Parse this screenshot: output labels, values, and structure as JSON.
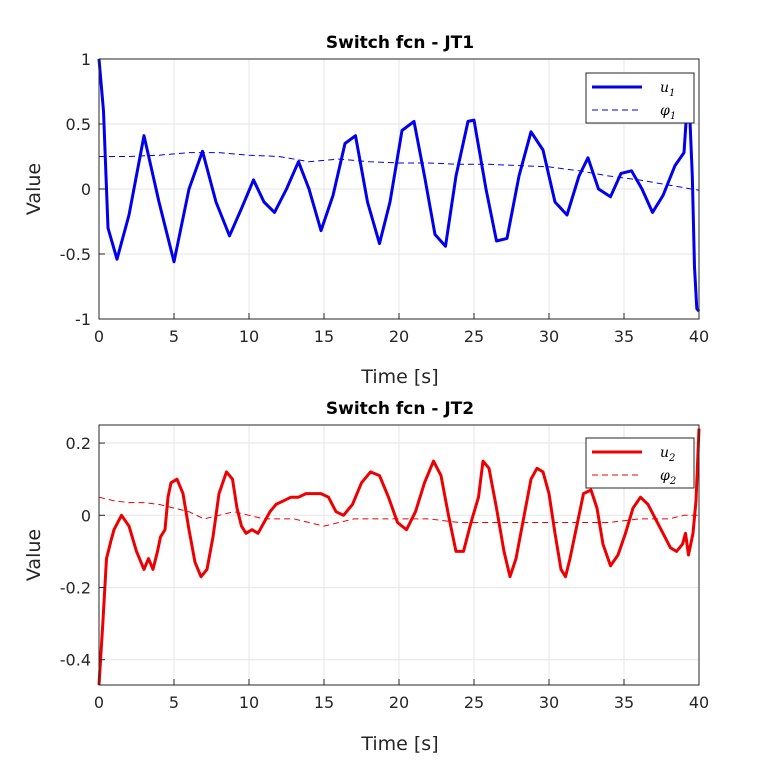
{
  "chart_data": [
    {
      "type": "line",
      "title": "Switch fcn - JT1",
      "xlabel": "Time [s]",
      "ylabel": "Value",
      "xlim": [
        0,
        40
      ],
      "ylim": [
        -1,
        1
      ],
      "xticks": [
        0,
        5,
        10,
        15,
        20,
        25,
        30,
        35,
        40
      ],
      "yticks": [
        -1,
        -0.5,
        0,
        0.5,
        1
      ],
      "xtick_labels": [
        "0",
        "5",
        "10",
        "15",
        "20",
        "25",
        "30",
        "35",
        "40"
      ],
      "ytick_labels": [
        "-1",
        "-0.5",
        "0",
        "0.5",
        "1"
      ],
      "grid": true,
      "legend_position": "top-right",
      "series": [
        {
          "name": "u1",
          "label_main": "u",
          "label_sub": "1",
          "color": "#0000ee",
          "style": "solid",
          "x": [
            0,
            0.3,
            0.6,
            1.2,
            2.0,
            3.0,
            4.0,
            5.0,
            6.0,
            6.9,
            7.8,
            8.7,
            9.5,
            10.3,
            11.0,
            11.7,
            12.5,
            13.3,
            14.0,
            14.8,
            15.6,
            16.4,
            17.1,
            17.9,
            18.7,
            19.4,
            20.2,
            21.0,
            21.7,
            22.4,
            23.1,
            23.8,
            24.6,
            25.0,
            25.8,
            26.5,
            27.2,
            28.0,
            28.8,
            29.6,
            30.4,
            31.2,
            32.0,
            32.6,
            33.3,
            34.1,
            34.8,
            35.5,
            36.2,
            36.9,
            37.6,
            38.4,
            39.0,
            39.3,
            39.55,
            39.7,
            39.85,
            40.0
          ],
          "y": [
            1.0,
            0.6,
            -0.3,
            -0.54,
            -0.2,
            0.41,
            -0.1,
            -0.56,
            0.0,
            0.29,
            -0.1,
            -0.36,
            -0.15,
            0.07,
            -0.1,
            -0.18,
            0.0,
            0.21,
            0.0,
            -0.32,
            -0.05,
            0.35,
            0.41,
            -0.1,
            -0.42,
            -0.1,
            0.45,
            0.52,
            0.1,
            -0.35,
            -0.44,
            0.1,
            0.52,
            0.53,
            0.0,
            -0.4,
            -0.38,
            0.1,
            0.44,
            0.3,
            -0.1,
            -0.2,
            0.1,
            0.24,
            0.0,
            -0.06,
            0.12,
            0.14,
            0.0,
            -0.18,
            -0.05,
            0.18,
            0.28,
            0.8,
            0.1,
            -0.6,
            -0.92,
            -0.94
          ]
        },
        {
          "name": "phi1",
          "label_main": "φ",
          "label_sub": "1",
          "color": "#0000ee",
          "style": "dashed",
          "x": [
            0,
            2,
            4,
            5,
            6,
            8,
            10,
            12,
            14,
            16,
            18,
            20,
            22,
            24,
            26,
            28,
            30,
            32,
            34,
            36,
            38,
            39,
            40
          ],
          "y": [
            0.25,
            0.25,
            0.26,
            0.27,
            0.28,
            0.28,
            0.26,
            0.25,
            0.21,
            0.23,
            0.21,
            0.2,
            0.2,
            0.19,
            0.19,
            0.18,
            0.17,
            0.14,
            0.1,
            0.07,
            0.03,
            0.01,
            -0.01
          ]
        }
      ]
    },
    {
      "type": "line",
      "title": "Switch fcn - JT2",
      "xlabel": "Time [s]",
      "ylabel": "Value",
      "xlim": [
        0,
        40
      ],
      "ylim": [
        -0.47,
        0.25
      ],
      "xticks": [
        0,
        5,
        10,
        15,
        20,
        25,
        30,
        35,
        40
      ],
      "yticks": [
        -0.4,
        -0.2,
        0,
        0.2
      ],
      "xtick_labels": [
        "0",
        "5",
        "10",
        "15",
        "20",
        "25",
        "30",
        "35",
        "40"
      ],
      "ytick_labels": [
        "-0.4",
        "-0.2",
        "0",
        "0.2"
      ],
      "grid": true,
      "legend_position": "top-right",
      "series": [
        {
          "name": "u2",
          "label_main": "u",
          "label_sub": "2",
          "color": "#ee0000",
          "style": "solid",
          "x": [
            0,
            0.25,
            0.5,
            0.8,
            1.0,
            1.5,
            2.0,
            2.5,
            3.0,
            3.3,
            3.6,
            3.9,
            4.1,
            4.4,
            4.6,
            4.8,
            5.2,
            5.6,
            6.0,
            6.4,
            6.8,
            7.2,
            7.6,
            8.0,
            8.5,
            8.9,
            9.2,
            9.5,
            9.8,
            10.2,
            10.6,
            11.0,
            11.4,
            11.8,
            12.3,
            12.8,
            13.3,
            13.8,
            14.3,
            14.8,
            15.3,
            15.8,
            16.3,
            16.9,
            17.5,
            18.1,
            18.7,
            19.3,
            19.9,
            20.5,
            21.1,
            21.7,
            22.3,
            22.8,
            23.3,
            23.8,
            24.3,
            24.8,
            25.3,
            25.6,
            26.0,
            26.5,
            27.0,
            27.4,
            27.8,
            28.3,
            28.8,
            29.2,
            29.6,
            30.0,
            30.4,
            30.8,
            31.1,
            31.4,
            31.8,
            32.3,
            32.8,
            33.2,
            33.6,
            34.1,
            34.6,
            35.1,
            35.6,
            36.1,
            36.6,
            37.1,
            37.6,
            38.1,
            38.5,
            38.9,
            39.1,
            39.3,
            39.6,
            39.8,
            40.0
          ],
          "y": [
            -0.47,
            -0.3,
            -0.12,
            -0.07,
            -0.04,
            0.0,
            -0.03,
            -0.1,
            -0.15,
            -0.12,
            -0.15,
            -0.1,
            -0.06,
            -0.04,
            0.05,
            0.09,
            0.1,
            0.06,
            -0.04,
            -0.13,
            -0.17,
            -0.15,
            -0.06,
            0.06,
            0.12,
            0.1,
            0.02,
            -0.03,
            -0.05,
            -0.04,
            -0.05,
            -0.02,
            0.01,
            0.03,
            0.04,
            0.05,
            0.05,
            0.06,
            0.06,
            0.06,
            0.05,
            0.01,
            0.0,
            0.03,
            0.09,
            0.12,
            0.11,
            0.05,
            -0.02,
            -0.04,
            0.01,
            0.09,
            0.15,
            0.11,
            0.0,
            -0.1,
            -0.1,
            -0.02,
            0.05,
            0.15,
            0.13,
            0.02,
            -0.1,
            -0.17,
            -0.12,
            -0.01,
            0.1,
            0.13,
            0.12,
            0.06,
            -0.05,
            -0.15,
            -0.17,
            -0.12,
            -0.04,
            0.06,
            0.07,
            0.02,
            -0.08,
            -0.14,
            -0.11,
            -0.05,
            0.02,
            0.05,
            0.03,
            -0.01,
            -0.05,
            -0.09,
            -0.1,
            -0.08,
            -0.05,
            -0.11,
            -0.05,
            0.04,
            0.24
          ]
        },
        {
          "name": "phi2",
          "label_main": "φ",
          "label_sub": "2",
          "color": "#ee0000",
          "style": "dashed",
          "x": [
            0,
            1,
            2,
            3,
            4,
            5,
            6,
            7,
            8,
            9,
            10,
            11,
            12,
            13,
            14,
            15,
            16,
            17,
            18,
            19,
            20,
            22,
            24,
            26,
            28,
            30,
            32,
            34,
            36,
            38,
            39,
            40
          ],
          "y": [
            0.05,
            0.04,
            0.035,
            0.035,
            0.03,
            0.02,
            0.01,
            -0.01,
            0.0,
            0.01,
            0.0,
            -0.01,
            -0.01,
            -0.01,
            -0.02,
            -0.03,
            -0.02,
            -0.01,
            -0.01,
            -0.01,
            -0.01,
            -0.01,
            -0.02,
            -0.02,
            -0.02,
            -0.02,
            -0.02,
            -0.02,
            -0.01,
            -0.01,
            0.0,
            0.0
          ]
        }
      ]
    }
  ]
}
